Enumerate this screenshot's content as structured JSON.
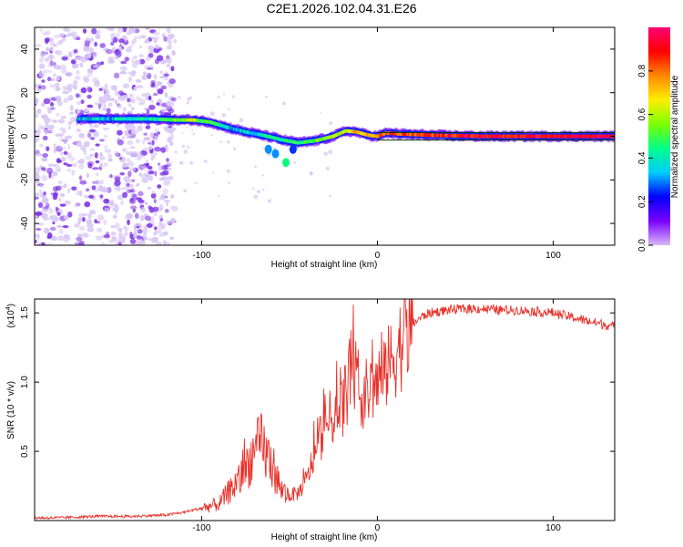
{
  "title": "C2E1.2026.102.04.31.E26",
  "colors": {
    "line": "#e8312a",
    "blob_faint": "#d8c8f4",
    "blob_strong": "#7a2ee6",
    "colorbar_stops": [
      "#d9b8f7",
      "#7a00ff",
      "#0000ff",
      "#00ccff",
      "#00ff88",
      "#7cff00",
      "#ffee00",
      "#ff8800",
      "#ff0000",
      "#ff0077"
    ]
  },
  "chart_data": [
    {
      "type": "heatmap",
      "title": "",
      "xlabel": "Height of straight line (km)",
      "ylabel": "Frequency (Hz)",
      "xlim": [
        -195,
        135
      ],
      "ylim": [
        -50,
        50
      ],
      "xticks": [
        -100,
        0,
        100
      ],
      "xtick_labels": [
        "-100",
        "0",
        "100"
      ],
      "yticks": [
        -40,
        -20,
        0,
        20,
        40
      ],
      "ytick_labels": [
        "-40",
        "-20",
        "0",
        "20",
        "40"
      ],
      "colorbar": {
        "label": "Normalized spectral amplitude",
        "range": [
          0,
          1
        ],
        "ticks": [
          0.0,
          0.2,
          0.4,
          0.6,
          0.8
        ],
        "tick_labels": [
          "0.0",
          "0.2",
          "0.4",
          "0.6",
          "0.8"
        ]
      },
      "ridge": {
        "x": [
          -170,
          -150,
          -130,
          -115,
          -105,
          -95,
          -85,
          -75,
          -65,
          -55,
          -45,
          -35,
          -25,
          -18,
          -12,
          -5,
          0,
          5,
          15,
          30,
          60,
          90,
          110,
          135
        ],
        "freq": [
          8,
          8,
          8,
          7.5,
          7.5,
          6.5,
          4,
          2,
          0.5,
          -1.5,
          -3,
          -2,
          0,
          2.5,
          2,
          0.5,
          0,
          1.5,
          1,
          0.5,
          0,
          0,
          0,
          0
        ],
        "amplitude": [
          0.35,
          0.35,
          0.4,
          0.5,
          0.6,
          0.5,
          0.35,
          0.35,
          0.4,
          0.45,
          0.5,
          0.55,
          0.6,
          0.65,
          0.7,
          0.75,
          0.8,
          0.8,
          0.85,
          0.85,
          0.9,
          0.9,
          0.95,
          0.95
        ]
      },
      "noise_region_x": [
        -195,
        -115
      ]
    },
    {
      "type": "line",
      "title": "",
      "xlabel": "Height of straight line (km)",
      "ylabel": "SNR (10 * v/v)",
      "y_multiplier": "(x10",
      "y_multiplier_exp": "4",
      "y_multiplier_close": ")",
      "xlim": [
        -195,
        135
      ],
      "ylim": [
        0,
        1.6
      ],
      "xticks": [
        -100,
        0,
        100
      ],
      "xtick_labels": [
        "-100",
        "0",
        "100"
      ],
      "yticks": [
        0.5,
        1.0,
        1.5
      ],
      "ytick_labels": [
        "0.5",
        "1.0",
        "1.5"
      ],
      "series": [
        {
          "name": "SNR",
          "x": [
            -195,
            -180,
            -160,
            -140,
            -120,
            -110,
            -100,
            -90,
            -85,
            -78,
            -72,
            -66,
            -62,
            -58,
            -55,
            -50,
            -45,
            -40,
            -36,
            -32,
            -28,
            -24,
            -20,
            -16,
            -14,
            -12,
            -8,
            -4,
            0,
            5,
            10,
            15,
            20,
            25,
            30,
            40,
            50,
            60,
            70,
            80,
            90,
            100,
            110,
            120,
            135
          ],
          "y": [
            0.02,
            0.02,
            0.03,
            0.03,
            0.04,
            0.06,
            0.09,
            0.12,
            0.2,
            0.3,
            0.45,
            0.55,
            0.45,
            0.35,
            0.22,
            0.18,
            0.2,
            0.3,
            0.48,
            0.6,
            0.72,
            0.78,
            0.82,
            1.0,
            1.28,
            0.95,
            0.9,
            0.95,
            1.0,
            1.08,
            1.2,
            1.32,
            1.42,
            1.47,
            1.5,
            1.52,
            1.53,
            1.53,
            1.52,
            1.52,
            1.51,
            1.5,
            1.47,
            1.44,
            1.4
          ]
        }
      ]
    }
  ]
}
